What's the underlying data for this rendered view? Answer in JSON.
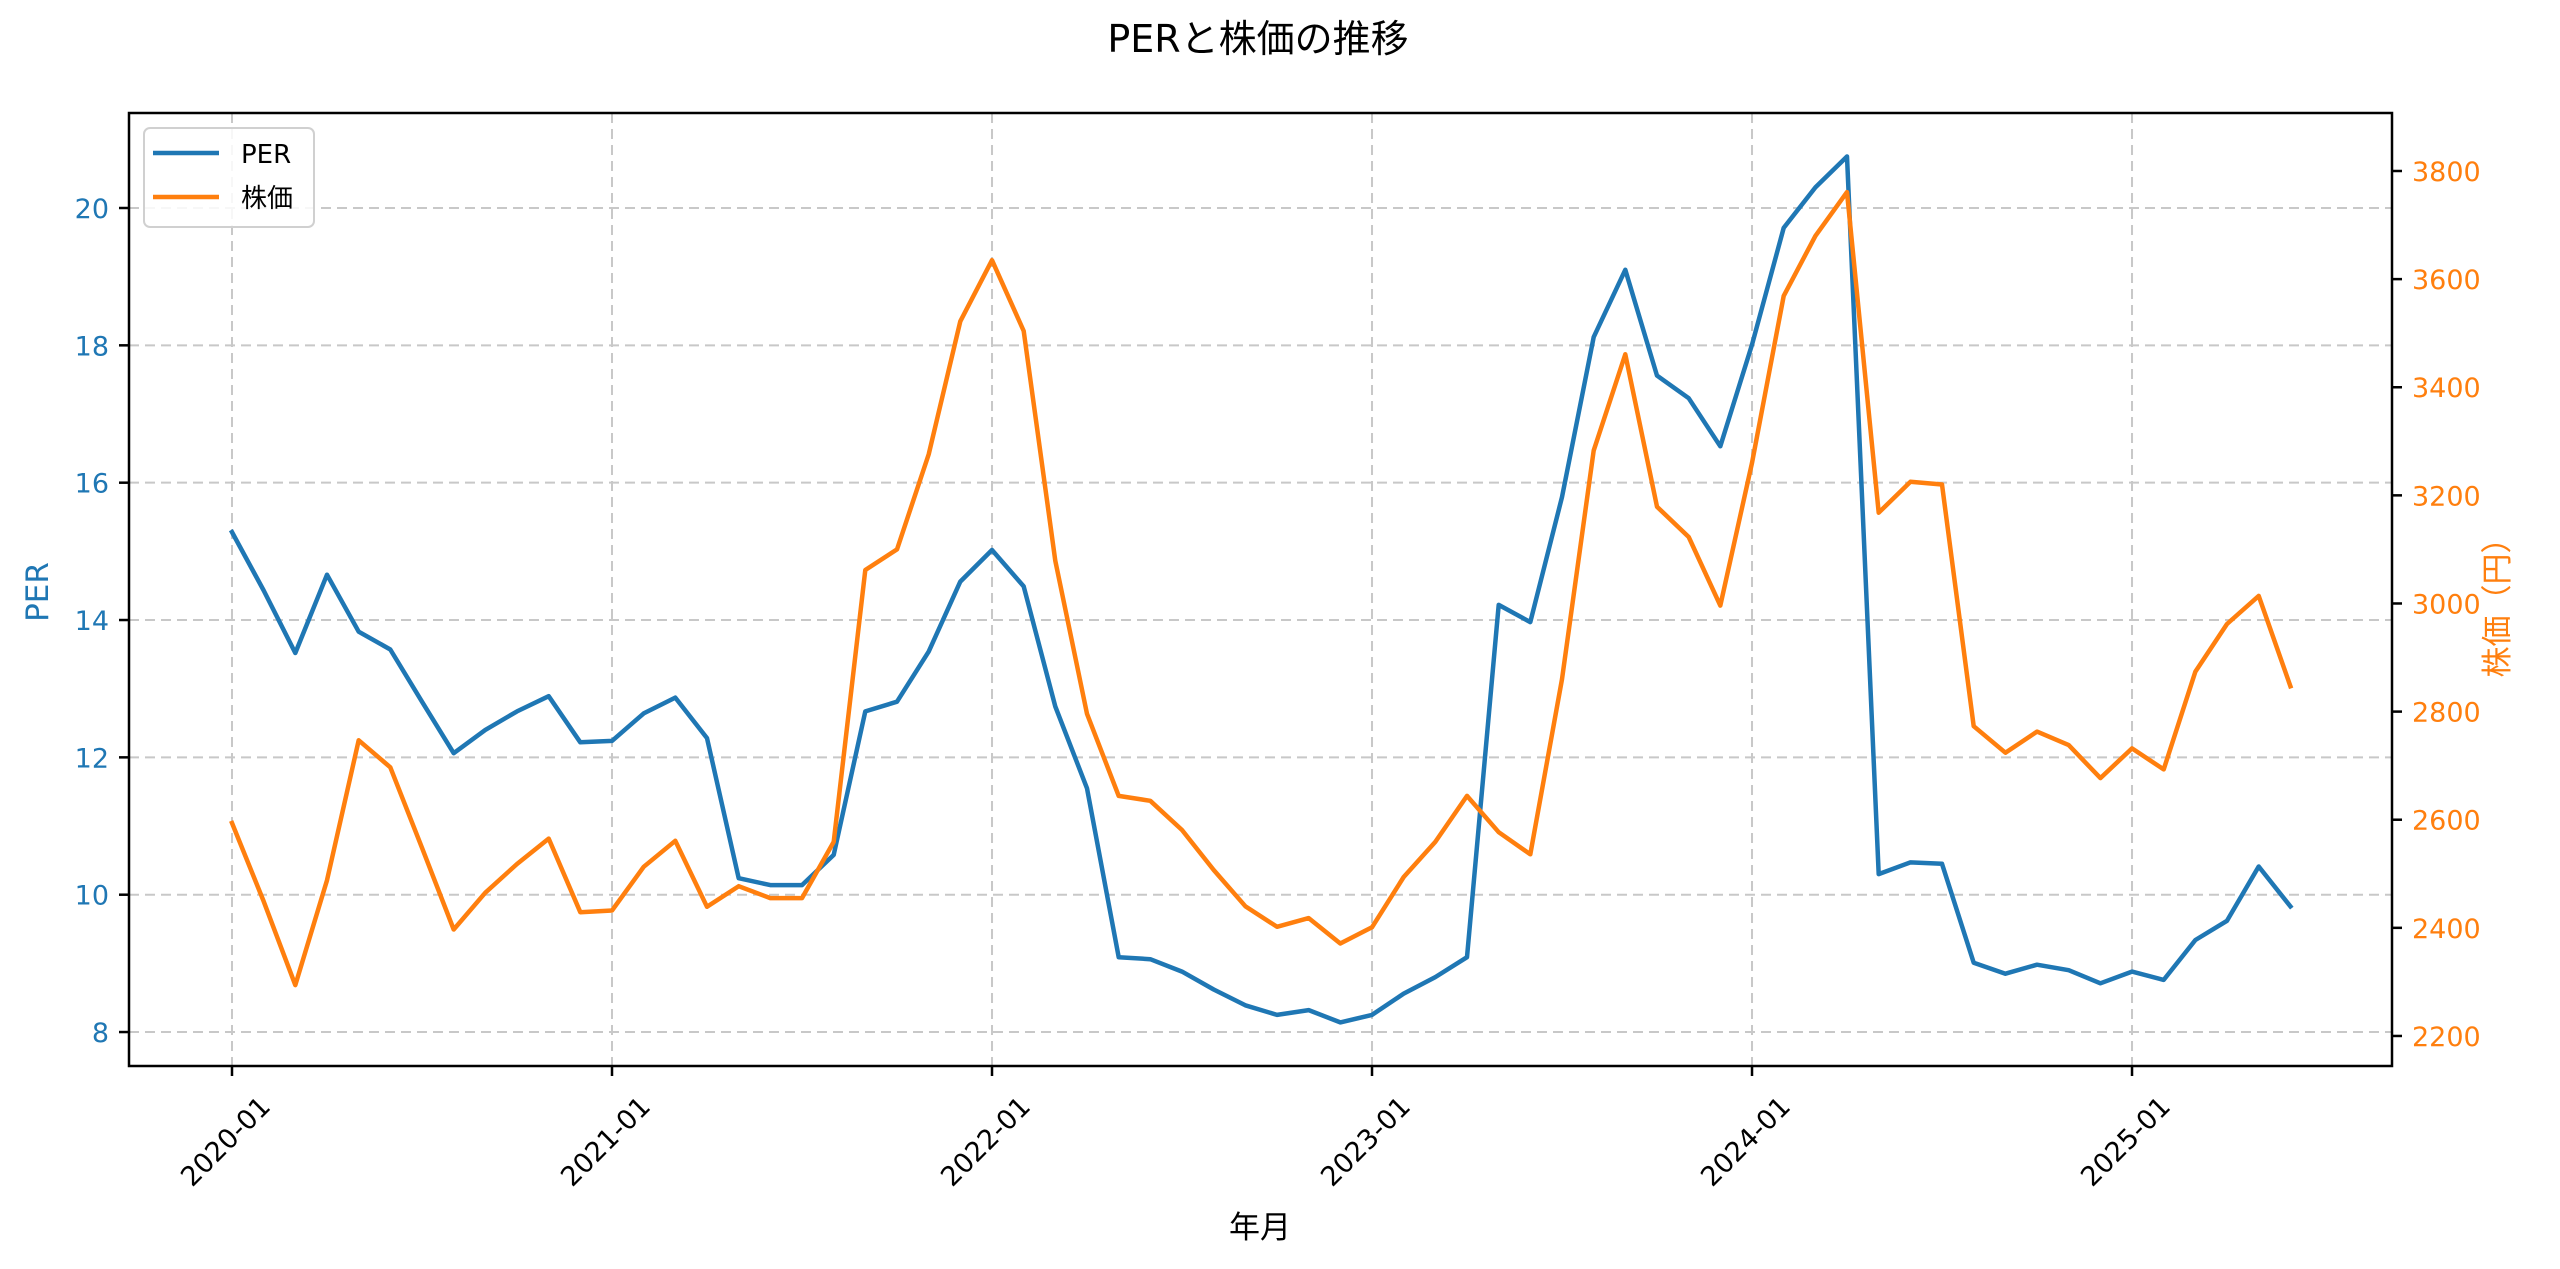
{
  "figure": {
    "title": "PERと株価の推移",
    "xlabel": "年月",
    "ylabel_left": "PER",
    "ylabel_right": "株価（円）"
  },
  "legend": {
    "items": [
      {
        "label": "PER",
        "color": "#1f77b4"
      },
      {
        "label": "株価",
        "color": "#ff7f0e"
      }
    ]
  },
  "colors": {
    "per": "#1f77b4",
    "price": "#ff7f0e",
    "grid": "#c8c8c8",
    "frame": "#000000"
  },
  "chart_data": {
    "type": "line",
    "title": "PERと株価の推移",
    "xlabel": "年月",
    "ylabel": "PER",
    "ylabel_secondary": "株価（円）",
    "grid": true,
    "legend_position": "upper left",
    "x": [
      "2020-01",
      "2020-02",
      "2020-03",
      "2020-04",
      "2020-05",
      "2020-06",
      "2020-07",
      "2020-08",
      "2020-09",
      "2020-10",
      "2020-11",
      "2020-12",
      "2021-01",
      "2021-02",
      "2021-03",
      "2021-04",
      "2021-05",
      "2021-06",
      "2021-07",
      "2021-08",
      "2021-09",
      "2021-10",
      "2021-11",
      "2021-12",
      "2022-01",
      "2022-02",
      "2022-03",
      "2022-04",
      "2022-05",
      "2022-06",
      "2022-07",
      "2022-08",
      "2022-09",
      "2022-10",
      "2022-11",
      "2022-12",
      "2023-01",
      "2023-02",
      "2023-03",
      "2023-04",
      "2023-05",
      "2023-06",
      "2023-07",
      "2023-08",
      "2023-09",
      "2023-10",
      "2023-11",
      "2023-12",
      "2024-01",
      "2024-02",
      "2024-03",
      "2024-04",
      "2024-05",
      "2024-06",
      "2024-07",
      "2024-08",
      "2024-09",
      "2024-10",
      "2024-11",
      "2024-12",
      "2025-01",
      "2025-02",
      "2025-03",
      "2025-04",
      "2025-05",
      "2025-06"
    ],
    "x_ticks": [
      "2020-01",
      "2021-01",
      "2022-01",
      "2023-01",
      "2024-01",
      "2025-01"
    ],
    "series": [
      {
        "name": "PER",
        "axis": "left",
        "color": "#1f77b4",
        "values": [
          15.28,
          14.43,
          13.52,
          14.66,
          13.83,
          13.57,
          12.81,
          12.06,
          12.4,
          12.67,
          12.89,
          12.22,
          12.24,
          12.64,
          12.87,
          12.28,
          10.24,
          10.14,
          10.14,
          10.58,
          12.67,
          12.81,
          13.54,
          14.56,
          15.02,
          14.49,
          12.74,
          11.55,
          9.09,
          9.06,
          8.88,
          8.62,
          8.39,
          8.25,
          8.32,
          8.14,
          8.25,
          8.56,
          8.8,
          9.09,
          14.22,
          13.97,
          15.79,
          18.12,
          19.1,
          17.56,
          17.23,
          16.53,
          18.01,
          19.71,
          20.3,
          20.75,
          10.3,
          10.47,
          10.45,
          9.01,
          8.85,
          8.98,
          8.9,
          8.71,
          8.88,
          8.76,
          9.34,
          9.62,
          10.41,
          9.83
        ]
      },
      {
        "name": "株価",
        "axis": "right",
        "color": "#ff7f0e",
        "values": [
          2594,
          2449,
          2294,
          2488,
          2747,
          2697,
          2548,
          2397,
          2465,
          2518,
          2565,
          2429,
          2432,
          2513,
          2561,
          2439,
          2477,
          2455,
          2455,
          2559,
          3062,
          3100,
          3276,
          3522,
          3635,
          3504,
          3079,
          2796,
          2644,
          2635,
          2581,
          2507,
          2440,
          2402,
          2418,
          2371,
          2401,
          2494,
          2559,
          2644,
          2577,
          2536,
          2860,
          3283,
          3461,
          3179,
          3123,
          2996,
          3260,
          3569,
          3680,
          3761,
          3168,
          3225,
          3220,
          2773,
          2724,
          2763,
          2738,
          2677,
          2732,
          2693,
          2874,
          2962,
          3014,
          2847
        ]
      }
    ],
    "y_left": {
      "ticks": [
        8,
        10,
        12,
        14,
        16,
        18,
        20
      ],
      "ylim": [
        7.5,
        21.4
      ]
    },
    "y_right": {
      "ticks": [
        2200,
        2400,
        2600,
        2800,
        3000,
        3200,
        3400,
        3600,
        3800
      ],
      "ylim": [
        2145,
        3908
      ]
    }
  }
}
